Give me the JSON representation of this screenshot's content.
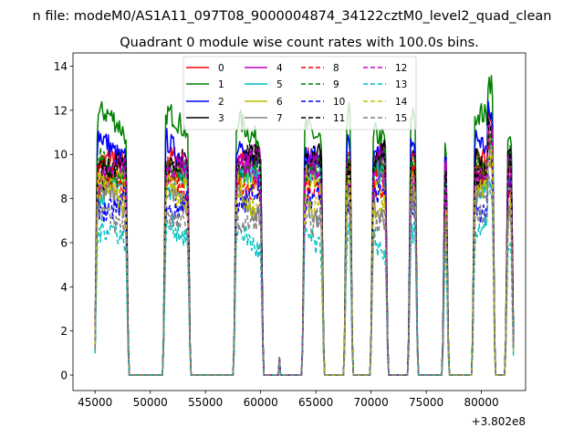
{
  "figure": {
    "suptitle": "n file: modeM0/AS1A11_097T08_9000004874_34122cztM0_level2_quad_clean",
    "offset_text": "+3.802e8"
  },
  "chart_data": {
    "type": "line",
    "title": "Quadrant 0 module wise count rates with 100.0s bins.",
    "xlabel": "",
    "ylabel": "",
    "x_offset": 380200000,
    "xlim": [
      43000,
      84000
    ],
    "ylim": [
      -0.7,
      14.6
    ],
    "x_ticks": [
      45000,
      50000,
      55000,
      60000,
      65000,
      70000,
      75000,
      80000
    ],
    "x_tick_labels": [
      "45000",
      "50000",
      "55000",
      "60000",
      "65000",
      "70000",
      "75000",
      "80000"
    ],
    "y_ticks": [
      0,
      2,
      4,
      6,
      8,
      10,
      12,
      14
    ],
    "y_tick_labels": [
      "0",
      "2",
      "4",
      "6",
      "8",
      "10",
      "12",
      "14"
    ],
    "grid": false,
    "legend": {
      "location": "top-center",
      "columns": 4
    },
    "on_intervals": [
      [
        45000,
        48000
      ],
      [
        51200,
        53600
      ],
      [
        57600,
        60200
      ],
      [
        63800,
        65700
      ],
      [
        67600,
        68300
      ],
      [
        70000,
        71500
      ],
      [
        73400,
        74200
      ],
      [
        76500,
        77000
      ],
      [
        79200,
        81200
      ],
      [
        82200,
        82900
      ]
    ],
    "spike": {
      "x": 61700,
      "y": 0.8
    },
    "series": [
      {
        "name": "0",
        "color": "#ff0000",
        "dash": false,
        "level": 9.3
      },
      {
        "name": "1",
        "color": "#008000",
        "dash": false,
        "level": 11.3
      },
      {
        "name": "2",
        "color": "#0000ff",
        "dash": false,
        "level": 10.4
      },
      {
        "name": "3",
        "color": "#000000",
        "dash": false,
        "level": 9.9
      },
      {
        "name": "4",
        "color": "#bf00bf",
        "dash": false,
        "level": 9.5
      },
      {
        "name": "5",
        "color": "#00bfbf",
        "dash": false,
        "level": 8.6
      },
      {
        "name": "6",
        "color": "#bfbf00",
        "dash": false,
        "level": 8.4
      },
      {
        "name": "7",
        "color": "#808080",
        "dash": false,
        "level": 7.7
      },
      {
        "name": "8",
        "color": "#ff0000",
        "dash": true,
        "level": 9.0
      },
      {
        "name": "9",
        "color": "#008000",
        "dash": true,
        "level": 9.7
      },
      {
        "name": "10",
        "color": "#0000ff",
        "dash": true,
        "level": 8.0
      },
      {
        "name": "11",
        "color": "#000000",
        "dash": true,
        "level": 9.4
      },
      {
        "name": "12",
        "color": "#bf00bf",
        "dash": true,
        "level": 8.9
      },
      {
        "name": "13",
        "color": "#00bfbf",
        "dash": true,
        "level": 6.1
      },
      {
        "name": "14",
        "color": "#bfbf00",
        "dash": true,
        "level": 8.2
      },
      {
        "name": "15",
        "color": "#808080",
        "dash": true,
        "level": 7.4
      }
    ]
  }
}
